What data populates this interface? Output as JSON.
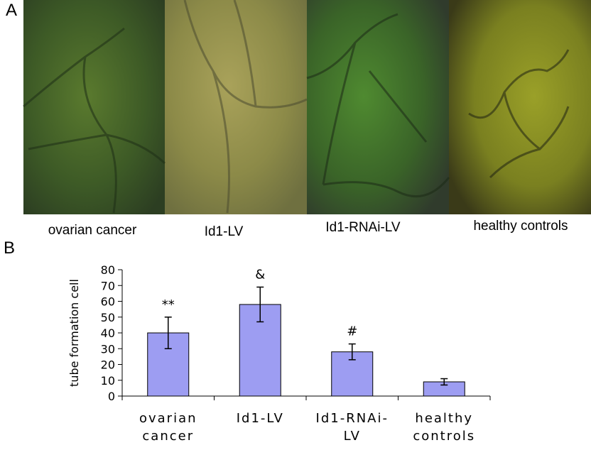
{
  "panels": {
    "a": {
      "label": "A",
      "captions": [
        "ovarian cancer",
        "Id1-LV",
        "Id1-RNAi-LV",
        "healthy controls"
      ]
    },
    "b": {
      "label": "B"
    }
  },
  "chart_data": {
    "type": "bar",
    "y_label": "tube formation cell",
    "categories": [
      "ovarian\ncancer",
      "Id1-LV",
      "Id1-RNAi-\nLV",
      "healthy\ncontrols"
    ],
    "values": [
      40,
      58,
      28,
      9
    ],
    "errors": [
      10,
      11,
      5,
      2
    ],
    "annotations": [
      "**",
      "&",
      "#",
      null
    ],
    "color": "#9d9df2",
    "ylim": [
      0,
      80
    ],
    "yticks": [
      0,
      10,
      20,
      30,
      40,
      50,
      60,
      70,
      80
    ]
  }
}
